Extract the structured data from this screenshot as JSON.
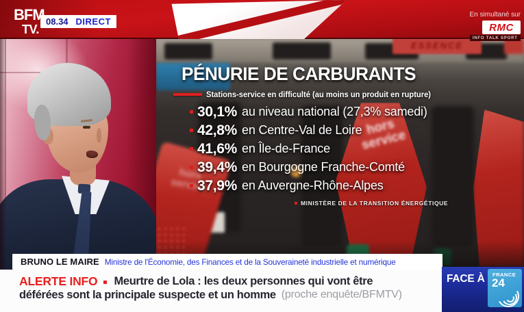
{
  "header": {
    "channel_line1": "BFM",
    "channel_line2": "TV.",
    "time": "08.34",
    "live": "DIRECT",
    "simulcast_label": "En simultané sur",
    "simulcast_channel": "RMC",
    "simulcast_tagline": "INFO TALK SPORT"
  },
  "infographic": {
    "title": "PÉNURIE DE CARBURANTS",
    "subtitle": "Stations-service en difficulté (au moins un produit en rupture)",
    "items": [
      {
        "value": "30,1%",
        "label": "au niveau national (27,3% samedi)"
      },
      {
        "value": "42,8%",
        "label": "en Centre-Val de Loire"
      },
      {
        "value": "41,6%",
        "label": "en Île-de-France"
      },
      {
        "value": "39,4%",
        "label": "en Bourgogne Franche-Comté"
      },
      {
        "value": "37,9%",
        "label": "en Auvergne-Rhône-Alpes"
      }
    ],
    "source": "MINISTÈRE DE LA TRANSITION ÉNERGÉTIQUE"
  },
  "scene": {
    "sign": "ESSENCE",
    "cover_line1": "hors",
    "cover_line2": "service"
  },
  "speaker": {
    "name": "BRUNO LE MAIRE",
    "role": "Ministre de l'Économie, des Finances et de la Souveraineté industrielle et numérique"
  },
  "ticker": {
    "alert_label": "ALERTE INFO",
    "headline_line1": "Meurtre de Lola : les deux personnes qui vont être",
    "headline_line2": "déférées sont la principale suspecte et un homme",
    "attribution": "(proche enquête/BFMTV)"
  },
  "program": {
    "label": "FACE À F",
    "logo_country": "FRANCE",
    "logo_number": "24"
  },
  "colors": {
    "brand_red": "#c41116",
    "alert_red": "#e8201e",
    "role_blue": "#2433d6",
    "direct_blue": "#1d22cc",
    "program_navy": "#1b2a96",
    "france24_blue": "#3aa0d8",
    "cover_red": "#b3241e"
  }
}
